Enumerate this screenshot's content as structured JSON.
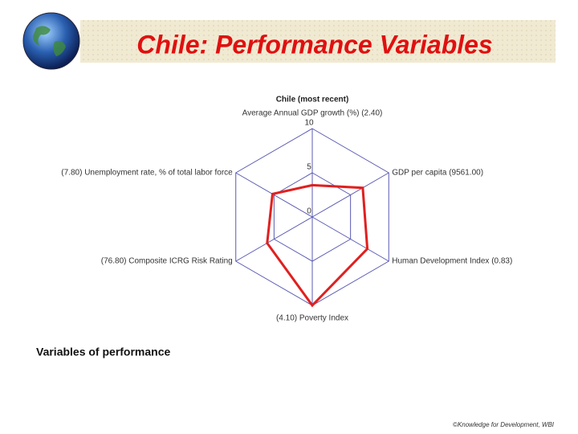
{
  "page_title": "Chile: Performance Variables",
  "section_heading": "Variables of performance",
  "footer": "©Knowledge for Development, WBI",
  "chart_data": {
    "type": "radar",
    "title": "Chile (most recent)",
    "categories": [
      "Average Annual GDP growth (%) (2.40)",
      "GDP per capita (9561.00)",
      "Human Development Index (0.83)",
      "(4.10) Poverty Index",
      "(76.80) Composite ICRG Risk Rating",
      "(7.80) Unemployment rate, % of total labor force"
    ],
    "values": [
      3.6,
      6.6,
      7.2,
      10,
      5.9,
      5.2
    ],
    "color": "#e02020",
    "ylim": [
      0,
      10
    ],
    "yticks": [
      0,
      5,
      10
    ],
    "grid": true
  }
}
